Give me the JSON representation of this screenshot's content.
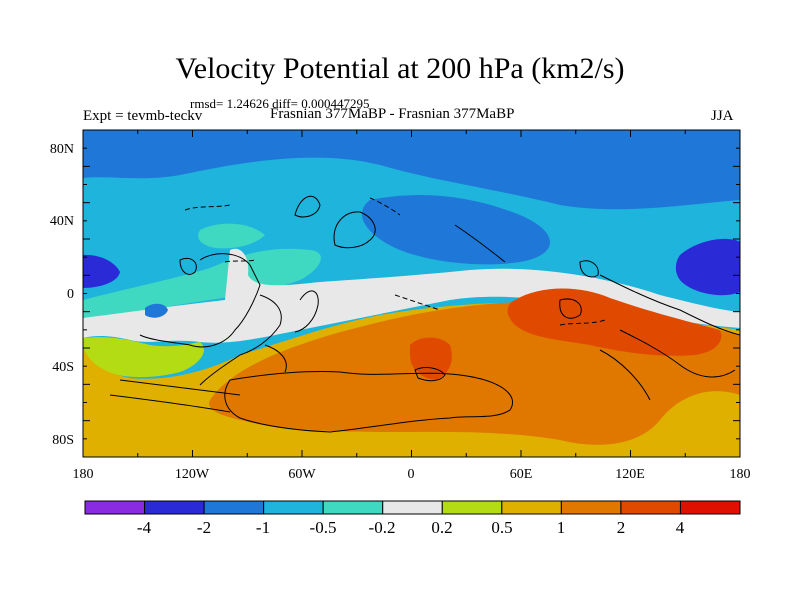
{
  "title": "Velocity Potential at 200 hPa (km2/s)",
  "stats": "rmsd= 1.24626 diff= 0.000447295",
  "expt": "Expt = tevmb-teckv",
  "subtitle": "Frasnian 377MaBP - Frasnian 377MaBP",
  "season": "JJA",
  "axes": {
    "x_ticks": [
      "180",
      "120W",
      "60W",
      "0",
      "60E",
      "120E",
      "180"
    ],
    "y_ticks": [
      "80N",
      "40N",
      "0",
      "40S",
      "80S"
    ]
  },
  "colorbar": {
    "colors": [
      "#8a2be2",
      "#2a2ad6",
      "#1f78d8",
      "#1fb4dc",
      "#3fd8c0",
      "#e8e8e8",
      "#b4dc14",
      "#e0b000",
      "#e07800",
      "#e04a00",
      "#e01000"
    ],
    "labels": [
      "-4",
      "-2",
      "-1",
      "-0.5",
      "-0.2",
      "0.2",
      "0.5",
      "1",
      "2",
      "4"
    ]
  }
}
